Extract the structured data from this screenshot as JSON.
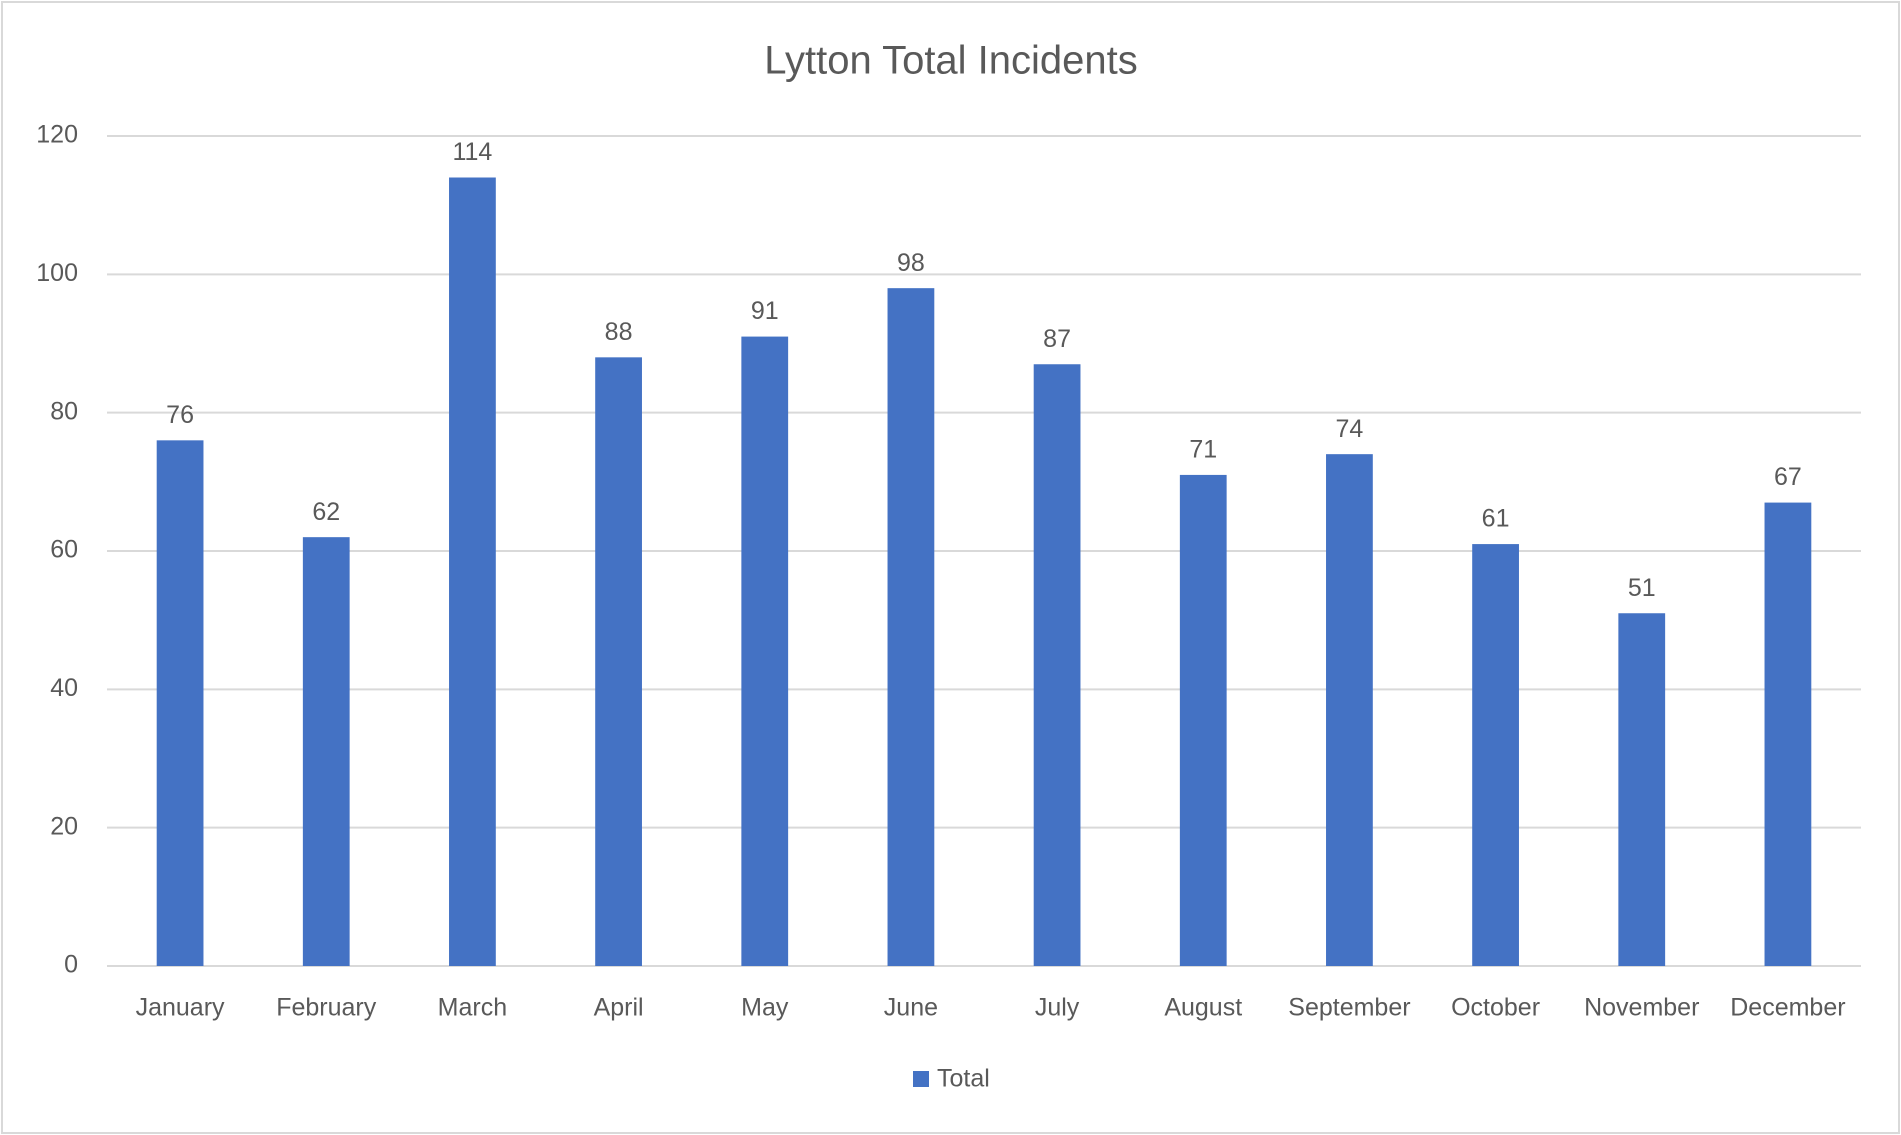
{
  "chart_data": {
    "type": "bar",
    "title": "Lytton Total Incidents",
    "categories": [
      "January",
      "February",
      "March",
      "April",
      "May",
      "June",
      "July",
      "August",
      "September",
      "October",
      "November",
      "December"
    ],
    "series": [
      {
        "name": "Total",
        "color": "#4472c4",
        "values": [
          76,
          62,
          114,
          88,
          91,
          98,
          87,
          71,
          74,
          61,
          51,
          67
        ]
      }
    ],
    "ylim": [
      0,
      120
    ],
    "yticks": [
      0,
      20,
      40,
      60,
      80,
      100,
      120
    ],
    "grid": true,
    "legend": "bottom",
    "data_labels": true
  }
}
